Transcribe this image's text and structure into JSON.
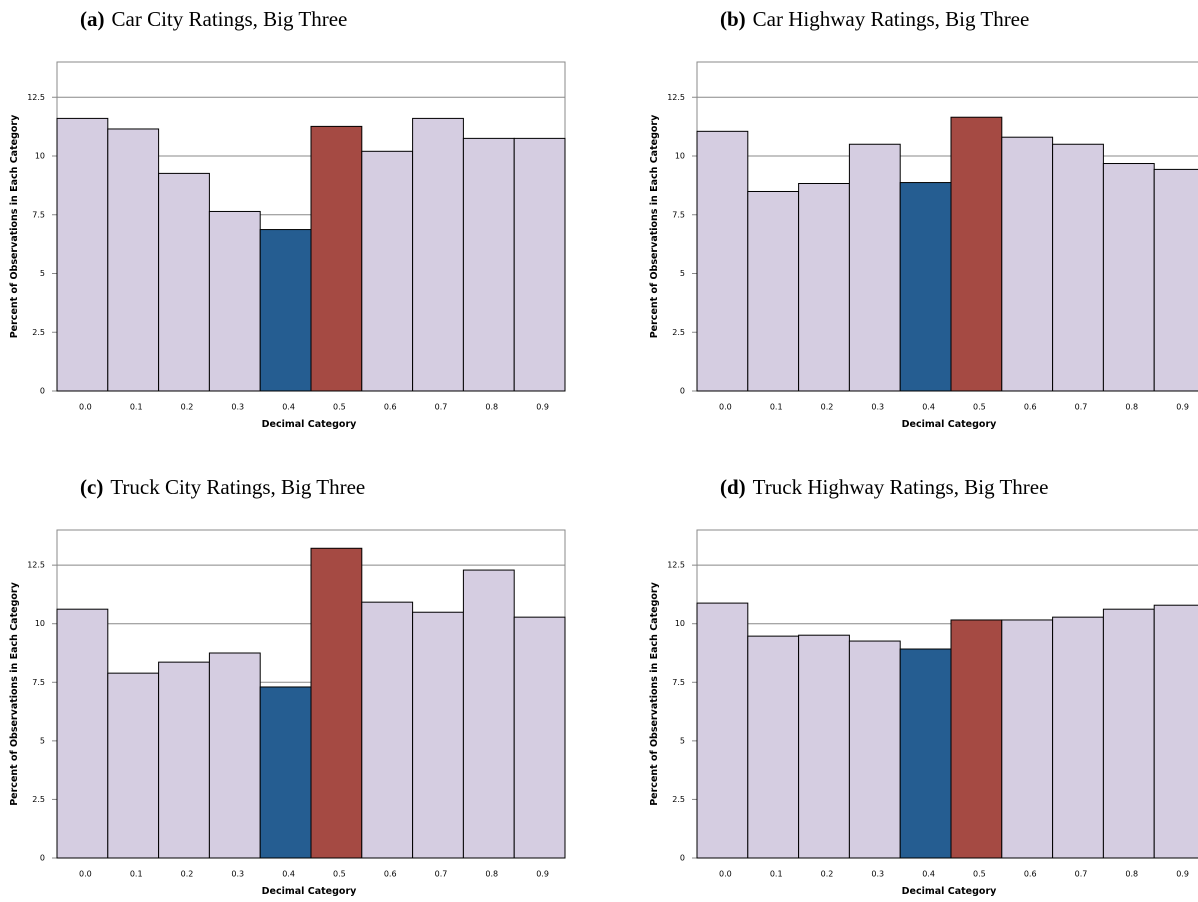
{
  "chart_data": [
    {
      "type": "bar",
      "panel_label": "(a)",
      "title": "Car City Ratings, Big Three",
      "x_label": "Decimal Category",
      "y_label": "Percent of Observations in Each Category",
      "categories": [
        "0.0",
        "0.1",
        "0.2",
        "0.3",
        "0.4",
        "0.5",
        "0.6",
        "0.7",
        "0.8",
        "0.9"
      ],
      "values": [
        11.6,
        11.15,
        9.26,
        7.64,
        6.87,
        11.26,
        10.2,
        11.6,
        10.75,
        10.75
      ],
      "colors": [
        "#d5cde1",
        "#d5cde1",
        "#d5cde1",
        "#d5cde1",
        "#255d91",
        "#a54a43",
        "#d5cde1",
        "#d5cde1",
        "#d5cde1",
        "#d5cde1"
      ],
      "ylim": [
        0,
        14
      ],
      "yticks": [
        0,
        2.5,
        5,
        7.5,
        10,
        12.5
      ],
      "grid": true
    },
    {
      "type": "bar",
      "panel_label": "(b)",
      "title": "Car Highway Ratings, Big Three",
      "x_label": "Decimal Category",
      "y_label": "Percent of Observations in Each Category",
      "categories": [
        "0.0",
        "0.1",
        "0.2",
        "0.3",
        "0.4",
        "0.5",
        "0.6",
        "0.7",
        "0.8",
        "0.9"
      ],
      "values": [
        11.05,
        8.49,
        8.83,
        10.5,
        8.87,
        11.65,
        10.8,
        10.5,
        9.68,
        9.43
      ],
      "colors": [
        "#d5cde1",
        "#d5cde1",
        "#d5cde1",
        "#d5cde1",
        "#255d91",
        "#a54a43",
        "#d5cde1",
        "#d5cde1",
        "#d5cde1",
        "#d5cde1"
      ],
      "ylim": [
        0,
        14
      ],
      "yticks": [
        0,
        2.5,
        5,
        7.5,
        10,
        12.5
      ],
      "grid": true
    },
    {
      "type": "bar",
      "panel_label": "(c)",
      "title": "Truck City Ratings, Big Three",
      "x_label": "Decimal Category",
      "y_label": "Percent of Observations in Each Category",
      "categories": [
        "0.0",
        "0.1",
        "0.2",
        "0.3",
        "0.4",
        "0.5",
        "0.6",
        "0.7",
        "0.8",
        "0.9"
      ],
      "values": [
        10.62,
        7.89,
        8.36,
        8.75,
        7.3,
        13.22,
        10.92,
        10.49,
        12.29,
        10.28
      ],
      "colors": [
        "#d5cde1",
        "#d5cde1",
        "#d5cde1",
        "#d5cde1",
        "#255d91",
        "#a54a43",
        "#d5cde1",
        "#d5cde1",
        "#d5cde1",
        "#d5cde1"
      ],
      "ylim": [
        0,
        14
      ],
      "yticks": [
        0,
        2.5,
        5,
        7.5,
        10,
        12.5
      ],
      "grid": true
    },
    {
      "type": "bar",
      "panel_label": "(d)",
      "title": "Truck Highway Ratings, Big Three",
      "x_label": "Decimal Category",
      "y_label": "Percent of Observations in Each Category",
      "categories": [
        "0.0",
        "0.1",
        "0.2",
        "0.3",
        "0.4",
        "0.5",
        "0.6",
        "0.7",
        "0.8",
        "0.9"
      ],
      "values": [
        10.88,
        9.47,
        9.51,
        9.26,
        8.92,
        10.16,
        10.16,
        10.28,
        10.62,
        10.79
      ],
      "colors": [
        "#d5cde1",
        "#d5cde1",
        "#d5cde1",
        "#d5cde1",
        "#255d91",
        "#a54a43",
        "#d5cde1",
        "#d5cde1",
        "#d5cde1",
        "#d5cde1"
      ],
      "ylim": [
        0,
        14
      ],
      "yticks": [
        0,
        2.5,
        5,
        7.5,
        10,
        12.5
      ],
      "grid": true
    }
  ]
}
